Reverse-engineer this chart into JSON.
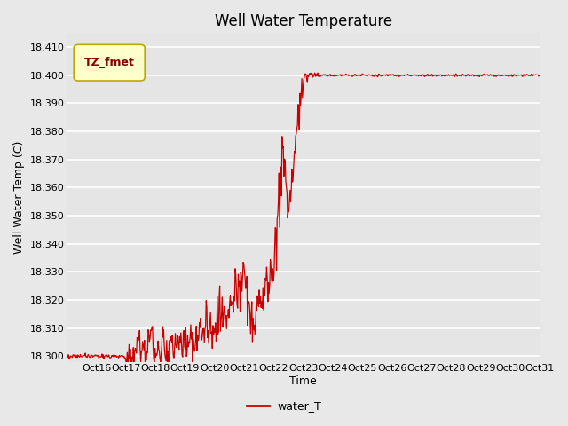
{
  "title": "Well Water Temperature",
  "xlabel": "Time",
  "ylabel": "Well Water Temp (C)",
  "line_color": "#cc0000",
  "line_label": "water_T",
  "legend_label": "TZ_fmet",
  "legend_box_facecolor": "#ffffcc",
  "legend_box_edge": "#bbaa00",
  "legend_text_color": "#880000",
  "ylim": [
    18.298,
    18.415
  ],
  "yticks": [
    18.3,
    18.31,
    18.32,
    18.33,
    18.34,
    18.35,
    18.36,
    18.37,
    18.38,
    18.39,
    18.4,
    18.41
  ],
  "xlim_start": 15.0,
  "xlim_end": 31.0,
  "xtick_positions": [
    16,
    17,
    18,
    19,
    20,
    21,
    22,
    23,
    24,
    25,
    26,
    27,
    28,
    29,
    30,
    31
  ],
  "xtick_labels": [
    "Oct 16",
    "Oct 17",
    "Oct 18",
    "Oct 19",
    "Oct 20",
    "Oct 21",
    "Oct 22",
    "Oct 23",
    "Oct 24",
    "Oct 25",
    "Oct 26",
    "Oct 27",
    "Oct 28",
    "Oct 29",
    "Oct 30",
    "Oct 31"
  ],
  "fig_facecolor": "#e8e8e8",
  "plot_facecolor": "#e5e5e5",
  "grid_color": "#ffffff",
  "grid_linewidth": 1.2,
  "title_fontsize": 12,
  "axis_label_fontsize": 9,
  "tick_fontsize": 8,
  "line_width": 0.9,
  "figsize": [
    6.4,
    4.8
  ],
  "dpi": 100
}
